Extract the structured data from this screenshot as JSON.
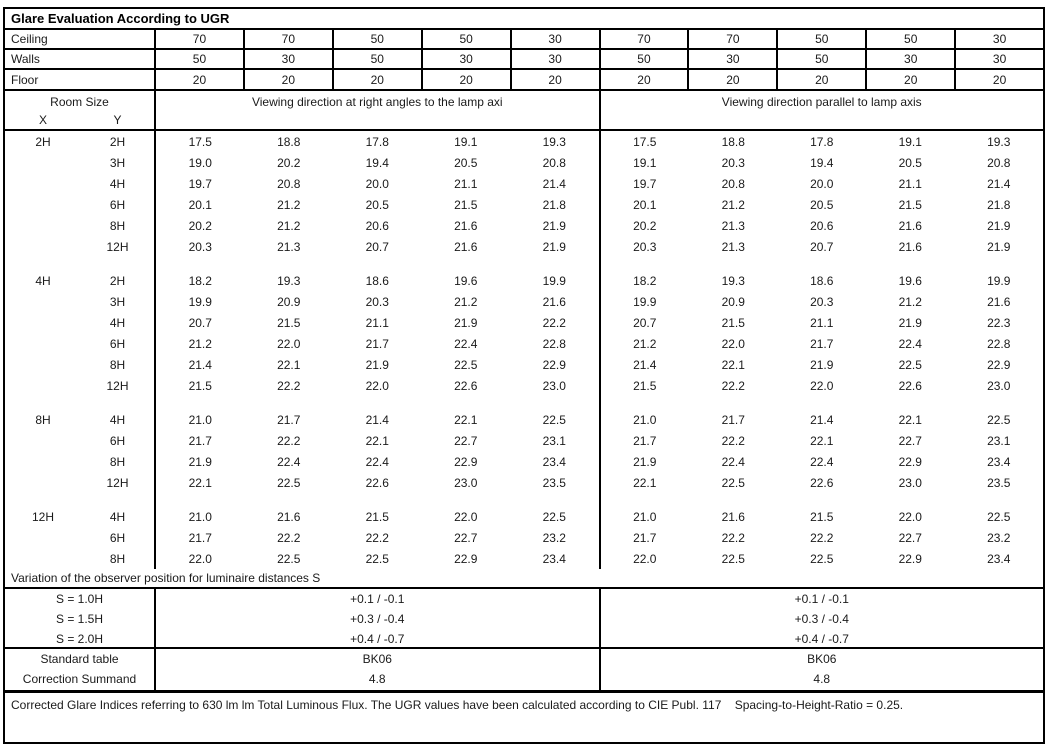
{
  "title": "Glare Evaluation According to UGR",
  "surfaces": [
    {
      "label": "Ceiling",
      "values": [
        "70",
        "70",
        "50",
        "50",
        "30",
        "70",
        "70",
        "50",
        "50",
        "30"
      ]
    },
    {
      "label": "Walls",
      "values": [
        "50",
        "30",
        "50",
        "30",
        "30",
        "50",
        "30",
        "50",
        "30",
        "30"
      ]
    },
    {
      "label": "Floor",
      "values": [
        "20",
        "20",
        "20",
        "20",
        "20",
        "20",
        "20",
        "20",
        "20",
        "20"
      ]
    }
  ],
  "headers": {
    "room_size": "Room Size",
    "x": "X",
    "y": "Y",
    "right_angles": "Viewing direction at right angles to the lamp axi",
    "parallel": "Viewing direction parallel to lamp axis"
  },
  "groups": [
    {
      "x": "2H",
      "rows": [
        {
          "y": "2H",
          "right_angles": [
            "17.5",
            "18.8",
            "17.8",
            "19.1",
            "19.3"
          ],
          "parallel": [
            "17.5",
            "18.8",
            "17.8",
            "19.1",
            "19.3"
          ]
        },
        {
          "y": "3H",
          "right_angles": [
            "19.0",
            "20.2",
            "19.4",
            "20.5",
            "20.8"
          ],
          "parallel": [
            "19.1",
            "20.3",
            "19.4",
            "20.5",
            "20.8"
          ]
        },
        {
          "y": "4H",
          "right_angles": [
            "19.7",
            "20.8",
            "20.0",
            "21.1",
            "21.4"
          ],
          "parallel": [
            "19.7",
            "20.8",
            "20.0",
            "21.1",
            "21.4"
          ]
        },
        {
          "y": "6H",
          "right_angles": [
            "20.1",
            "21.2",
            "20.5",
            "21.5",
            "21.8"
          ],
          "parallel": [
            "20.1",
            "21.2",
            "20.5",
            "21.5",
            "21.8"
          ]
        },
        {
          "y": "8H",
          "right_angles": [
            "20.2",
            "21.2",
            "20.6",
            "21.6",
            "21.9"
          ],
          "parallel": [
            "20.2",
            "21.3",
            "20.6",
            "21.6",
            "21.9"
          ]
        },
        {
          "y": "12H",
          "right_angles": [
            "20.3",
            "21.3",
            "20.7",
            "21.6",
            "21.9"
          ],
          "parallel": [
            "20.3",
            "21.3",
            "20.7",
            "21.6",
            "21.9"
          ]
        }
      ]
    },
    {
      "x": "4H",
      "rows": [
        {
          "y": "2H",
          "right_angles": [
            "18.2",
            "19.3",
            "18.6",
            "19.6",
            "19.9"
          ],
          "parallel": [
            "18.2",
            "19.3",
            "18.6",
            "19.6",
            "19.9"
          ]
        },
        {
          "y": "3H",
          "right_angles": [
            "19.9",
            "20.9",
            "20.3",
            "21.2",
            "21.6"
          ],
          "parallel": [
            "19.9",
            "20.9",
            "20.3",
            "21.2",
            "21.6"
          ]
        },
        {
          "y": "4H",
          "right_angles": [
            "20.7",
            "21.5",
            "21.1",
            "21.9",
            "22.2"
          ],
          "parallel": [
            "20.7",
            "21.5",
            "21.1",
            "21.9",
            "22.3"
          ]
        },
        {
          "y": "6H",
          "right_angles": [
            "21.2",
            "22.0",
            "21.7",
            "22.4",
            "22.8"
          ],
          "parallel": [
            "21.2",
            "22.0",
            "21.7",
            "22.4",
            "22.8"
          ]
        },
        {
          "y": "8H",
          "right_angles": [
            "21.4",
            "22.1",
            "21.9",
            "22.5",
            "22.9"
          ],
          "parallel": [
            "21.4",
            "22.1",
            "21.9",
            "22.5",
            "22.9"
          ]
        },
        {
          "y": "12H",
          "right_angles": [
            "21.5",
            "22.2",
            "22.0",
            "22.6",
            "23.0"
          ],
          "parallel": [
            "21.5",
            "22.2",
            "22.0",
            "22.6",
            "23.0"
          ]
        }
      ]
    },
    {
      "x": "8H",
      "rows": [
        {
          "y": "4H",
          "right_angles": [
            "21.0",
            "21.7",
            "21.4",
            "22.1",
            "22.5"
          ],
          "parallel": [
            "21.0",
            "21.7",
            "21.4",
            "22.1",
            "22.5"
          ]
        },
        {
          "y": "6H",
          "right_angles": [
            "21.7",
            "22.2",
            "22.1",
            "22.7",
            "23.1"
          ],
          "parallel": [
            "21.7",
            "22.2",
            "22.1",
            "22.7",
            "23.1"
          ]
        },
        {
          "y": "8H",
          "right_angles": [
            "21.9",
            "22.4",
            "22.4",
            "22.9",
            "23.4"
          ],
          "parallel": [
            "21.9",
            "22.4",
            "22.4",
            "22.9",
            "23.4"
          ]
        },
        {
          "y": "12H",
          "right_angles": [
            "22.1",
            "22.5",
            "22.6",
            "23.0",
            "23.5"
          ],
          "parallel": [
            "22.1",
            "22.5",
            "22.6",
            "23.0",
            "23.5"
          ]
        }
      ]
    },
    {
      "x": "12H",
      "rows": [
        {
          "y": "4H",
          "right_angles": [
            "21.0",
            "21.6",
            "21.5",
            "22.0",
            "22.5"
          ],
          "parallel": [
            "21.0",
            "21.6",
            "21.5",
            "22.0",
            "22.5"
          ]
        },
        {
          "y": "6H",
          "right_angles": [
            "21.7",
            "22.2",
            "22.2",
            "22.7",
            "23.2"
          ],
          "parallel": [
            "21.7",
            "22.2",
            "22.2",
            "22.7",
            "23.2"
          ]
        },
        {
          "y": "8H",
          "right_angles": [
            "22.0",
            "22.5",
            "22.5",
            "22.9",
            "23.4"
          ],
          "parallel": [
            "22.0",
            "22.5",
            "22.5",
            "22.9",
            "23.4"
          ]
        }
      ]
    }
  ],
  "variation": {
    "title": "Variation of the observer position for luminaire distances S",
    "rows": [
      {
        "label": "S = 1.0H",
        "value": "+0.1 / -0.1"
      },
      {
        "label": "S = 1.5H",
        "value": "+0.3 / -0.4"
      },
      {
        "label": "S = 2.0H",
        "value": "+0.4 / -0.7"
      }
    ]
  },
  "summary": {
    "rows": [
      {
        "label": "Standard table",
        "value": "BK06"
      },
      {
        "label": "Correction Summand",
        "value": "4.8"
      }
    ]
  },
  "footer": {
    "text": "Corrected Glare Indices referring to 630 lm lm Total Luminous Flux. The UGR values have been calculated according to CIE Publ. 117    Spacing-to-Height-Ratio = 0.25."
  }
}
